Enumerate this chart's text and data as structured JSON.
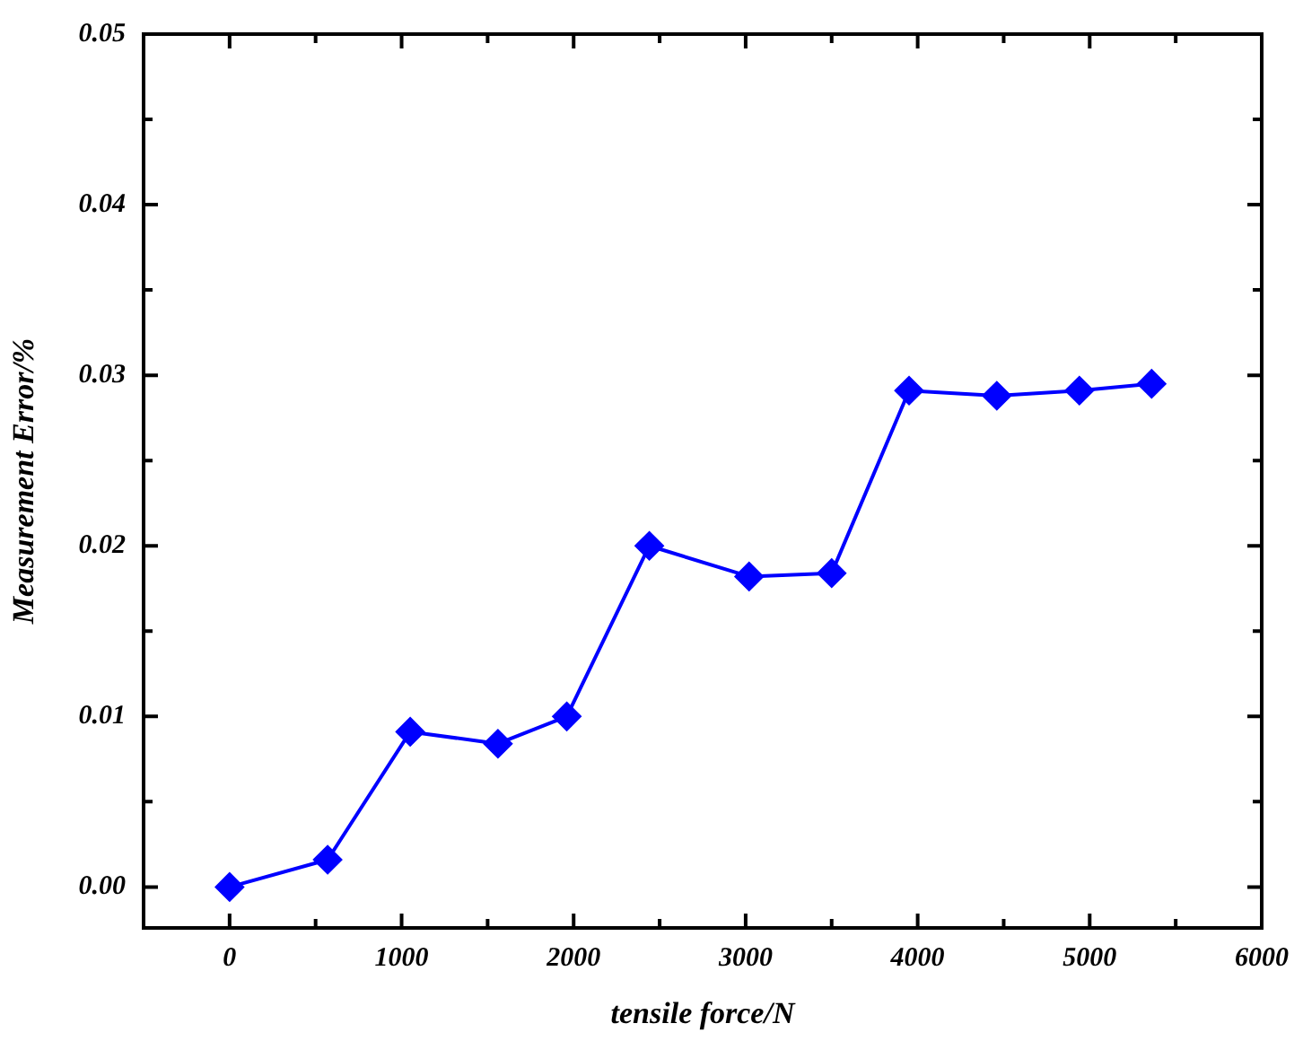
{
  "chart_data": {
    "type": "line",
    "xlabel": "tensile force/N",
    "ylabel": "Measurement Error/%",
    "x": [
      0,
      570,
      1050,
      1560,
      1960,
      2440,
      3020,
      3500,
      3950,
      4460,
      4940,
      5360
    ],
    "series": [
      {
        "color": "#0000ff",
        "values": [
          0,
          0.0016,
          0.0091,
          0.0084,
          0.01,
          0.02,
          0.0182,
          0.0184,
          0.0291,
          0.0288,
          0.0291,
          0.0295
        ]
      }
    ],
    "xlim": [
      -500,
      6000
    ],
    "xticks": [
      {
        "value": -500,
        "label": null
      },
      0,
      {
        "value": 500,
        "label": null
      },
      1000,
      {
        "value": 1500,
        "label": null
      },
      2000,
      {
        "value": 2500,
        "label": null
      },
      3000,
      {
        "value": 3500,
        "label": null
      },
      4000,
      {
        "value": 4500,
        "label": null
      },
      5000,
      {
        "value": 5500,
        "label": null
      },
      6000
    ],
    "ylim": [
      -0.0024,
      0.05
    ],
    "yticks": [
      {
        "value": 0,
        "label": "0.00"
      },
      {
        "value": 0.005,
        "label": null
      },
      0.01,
      {
        "value": 0.015,
        "label": null
      },
      0.02,
      {
        "value": 0.025,
        "label": null
      },
      0.03,
      {
        "value": 0.035,
        "label": null
      },
      0.04,
      {
        "value": 0.045,
        "label": null
      },
      0.05
    ],
    "grid": false,
    "legend": false,
    "marker": "diamond",
    "line_style": "solid"
  }
}
